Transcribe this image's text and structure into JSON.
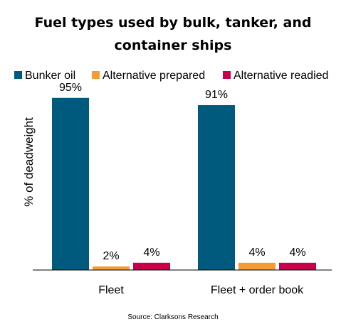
{
  "chart_data": {
    "type": "bar",
    "title_line1": "Fuel types used by bulk, tanker, and",
    "title_line2": "container ships",
    "ylabel": "% of deadweight",
    "xlabel": "",
    "ylim": [
      0,
      100
    ],
    "grid": false,
    "legend_position": "top",
    "categories": [
      "Fleet",
      "Fleet + order book"
    ],
    "series": [
      {
        "name": "Bunker oil",
        "color": "#005a7e",
        "values": [
          95,
          91
        ],
        "labels": [
          "95%",
          "91%"
        ]
      },
      {
        "name": "Alternative prepared",
        "color": "#f39c33",
        "values": [
          2,
          4
        ],
        "labels": [
          "2%",
          "4%"
        ]
      },
      {
        "name": "Alternative readied",
        "color": "#c8004b",
        "values": [
          4,
          4
        ],
        "labels": [
          "4%",
          "4%"
        ]
      }
    ],
    "source": "Source: Clarksons Research"
  }
}
